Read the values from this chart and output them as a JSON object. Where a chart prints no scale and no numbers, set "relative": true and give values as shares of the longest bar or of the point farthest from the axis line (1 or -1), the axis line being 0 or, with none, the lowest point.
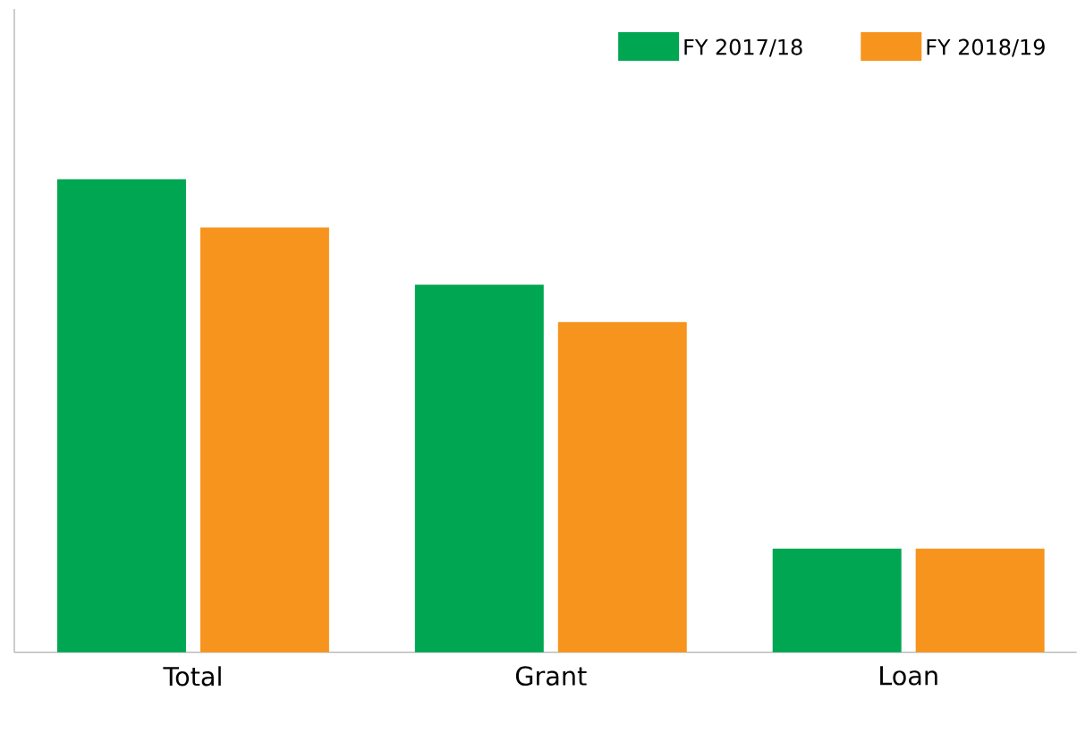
{
  "chart_data": {
    "type": "bar",
    "relative": true,
    "categories": [
      "Total",
      "Grant",
      "Loan"
    ],
    "series": [
      {
        "name": "FY 2017/18",
        "color": "#00a651",
        "values": [
          1,
          0.777,
          0.219
        ]
      },
      {
        "name": "FY 2018/19",
        "color": "#f7941d",
        "values": [
          0.898,
          0.698,
          0.219
        ]
      }
    ],
    "legend": "top right"
  }
}
